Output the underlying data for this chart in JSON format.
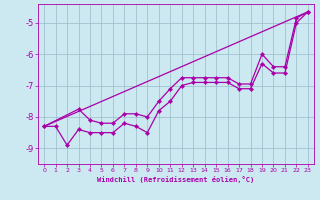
{
  "xlabel": "Windchill (Refroidissement éolien,°C)",
  "background_color": "#cce8f0",
  "grid_color": "#99bbcc",
  "line_color": "#aa00aa",
  "xlim": [
    -0.5,
    23.5
  ],
  "ylim": [
    -9.5,
    -4.4
  ],
  "yticks": [
    -9,
    -8,
    -7,
    -6,
    -5
  ],
  "xticks": [
    0,
    1,
    2,
    3,
    4,
    5,
    6,
    7,
    8,
    9,
    10,
    11,
    12,
    13,
    14,
    15,
    16,
    17,
    18,
    19,
    20,
    21,
    22,
    23
  ],
  "straight_line": [
    [
      0,
      -8.3
    ],
    [
      23,
      -4.65
    ]
  ],
  "line1_x": [
    0,
    1,
    2,
    3,
    4,
    5,
    6,
    7,
    8,
    9,
    10,
    11,
    12,
    13,
    14,
    15,
    16,
    17,
    18,
    19,
    20,
    21,
    22,
    23
  ],
  "line1_y": [
    -8.3,
    -8.3,
    -8.9,
    -8.4,
    -8.5,
    -8.5,
    -8.5,
    -8.2,
    -8.3,
    -8.5,
    -7.8,
    -7.5,
    -7.0,
    -6.9,
    -6.9,
    -6.9,
    -6.9,
    -7.1,
    -7.1,
    -6.3,
    -6.6,
    -6.6,
    -5.0,
    -4.65
  ],
  "line2_x": [
    0,
    3,
    4,
    5,
    6,
    7,
    8,
    9,
    10,
    11,
    12,
    13,
    14,
    15,
    16,
    17,
    18,
    19,
    20,
    21,
    22,
    23
  ],
  "line2_y": [
    -8.3,
    -7.75,
    -8.1,
    -8.2,
    -8.2,
    -7.9,
    -7.9,
    -8.0,
    -7.5,
    -7.1,
    -6.75,
    -6.75,
    -6.75,
    -6.75,
    -6.75,
    -6.95,
    -6.95,
    -6.0,
    -6.4,
    -6.4,
    -4.85,
    -4.65
  ]
}
